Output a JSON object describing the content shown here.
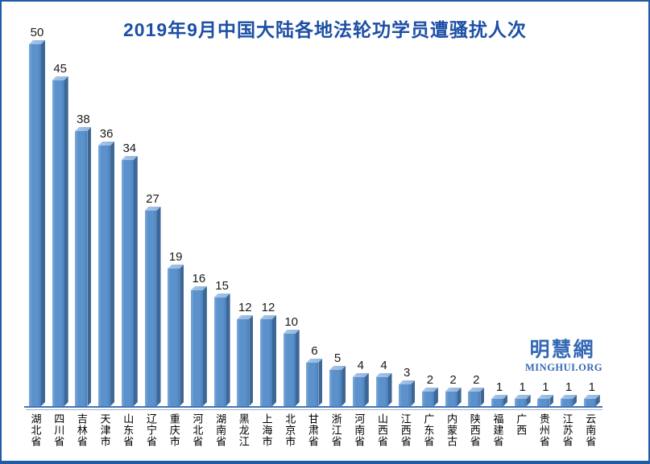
{
  "frame": {
    "background": "#FFFFFF",
    "border_color": "#1E5CA8"
  },
  "chart_data": {
    "type": "bar",
    "title": "2019年9月中国大陆各地法轮功学员遭骚扰人次",
    "categories": [
      "湖北省",
      "四川省",
      "吉林省",
      "天津市",
      "山东省",
      "辽宁省",
      "重庆市",
      "河北省",
      "湖南省",
      "黑龙江",
      "上海市",
      "北京市",
      "甘肃省",
      "浙江省",
      "河南省",
      "山西省",
      "江西省",
      "广东省",
      "内蒙古",
      "陕西省",
      "福建省",
      "广西",
      "贵州省",
      "江苏省",
      "云南省"
    ],
    "values": [
      50,
      45,
      38,
      36,
      34,
      27,
      19,
      16,
      15,
      12,
      12,
      10,
      6,
      5,
      4,
      4,
      3,
      2,
      2,
      2,
      1,
      1,
      1,
      1,
      1
    ],
    "xlabel": "",
    "ylabel": "",
    "ylim": [
      0,
      50
    ],
    "grid": false,
    "legend": "none",
    "data_labels": true,
    "bar_style": "3d-column",
    "colors": {
      "title": "#1C4FA5",
      "value_label": "#1A1A1A",
      "category_label": "#000000",
      "bar_front": "#5B92CC",
      "bar_front_highlight": "#7FA9DB",
      "bar_front_shade": "#4D80BA",
      "bar_top": "#8FB4DF",
      "bar_top_light": "#A9C6E8",
      "bar_side": "#3C6796",
      "axis_line": "#4474B5"
    }
  },
  "watermark": {
    "cjk": "明慧網",
    "latin": "MINGHUI.ORG",
    "color": "#3468B5"
  }
}
